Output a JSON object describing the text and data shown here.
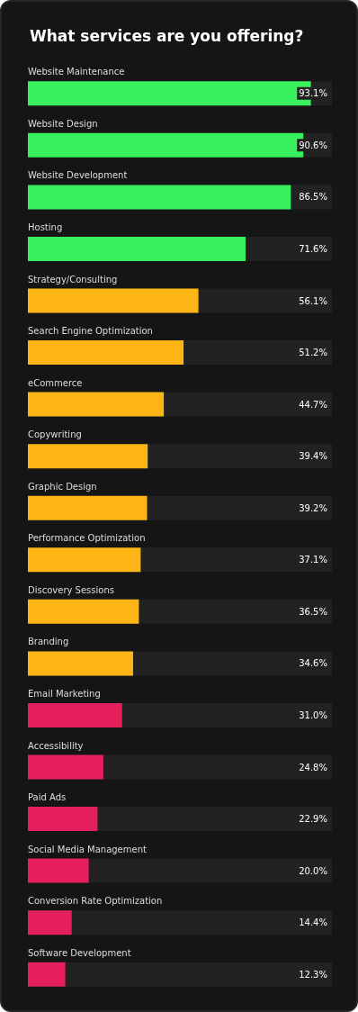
{
  "chart_data": {
    "type": "bar",
    "orientation": "horizontal",
    "title": "What services are you offering?",
    "categories": [
      "Website Maintenance",
      "Website Design",
      "Website Development",
      "Hosting",
      "Strategy/Consulting",
      "Search Engine Optimization",
      "eCommerce",
      "Copywriting",
      "Graphic Design",
      "Performance Optimization",
      "Discovery Sessions",
      "Branding",
      "Email Marketing",
      "Accessibility",
      "Paid Ads",
      "Social Media Management",
      "Conversion Rate Optimization",
      "Software Development"
    ],
    "values": [
      93.1,
      90.6,
      86.5,
      71.6,
      56.1,
      51.2,
      44.7,
      39.4,
      39.2,
      37.1,
      36.5,
      34.6,
      31.0,
      24.8,
      22.9,
      20.0,
      14.4,
      12.3
    ],
    "colors": [
      "#38f05b",
      "#38f05b",
      "#38f05b",
      "#38f05b",
      "#fdb515",
      "#fdb515",
      "#fdb515",
      "#fdb515",
      "#fdb515",
      "#fdb515",
      "#fdb515",
      "#fdb515",
      "#e6205c",
      "#e6205c",
      "#e6205c",
      "#e6205c",
      "#e6205c",
      "#e6205c"
    ],
    "value_labels": [
      "93.1%",
      "90.6%",
      "86.5%",
      "71.6%",
      "56.1%",
      "51.2%",
      "44.7%",
      "39.4%",
      "39.2%",
      "37.1%",
      "36.5%",
      "34.6%",
      "31.0%",
      "24.8%",
      "22.9%",
      "20.0%",
      "14.4%",
      "12.3%"
    ],
    "xlim": [
      0,
      100
    ],
    "grid": false
  }
}
